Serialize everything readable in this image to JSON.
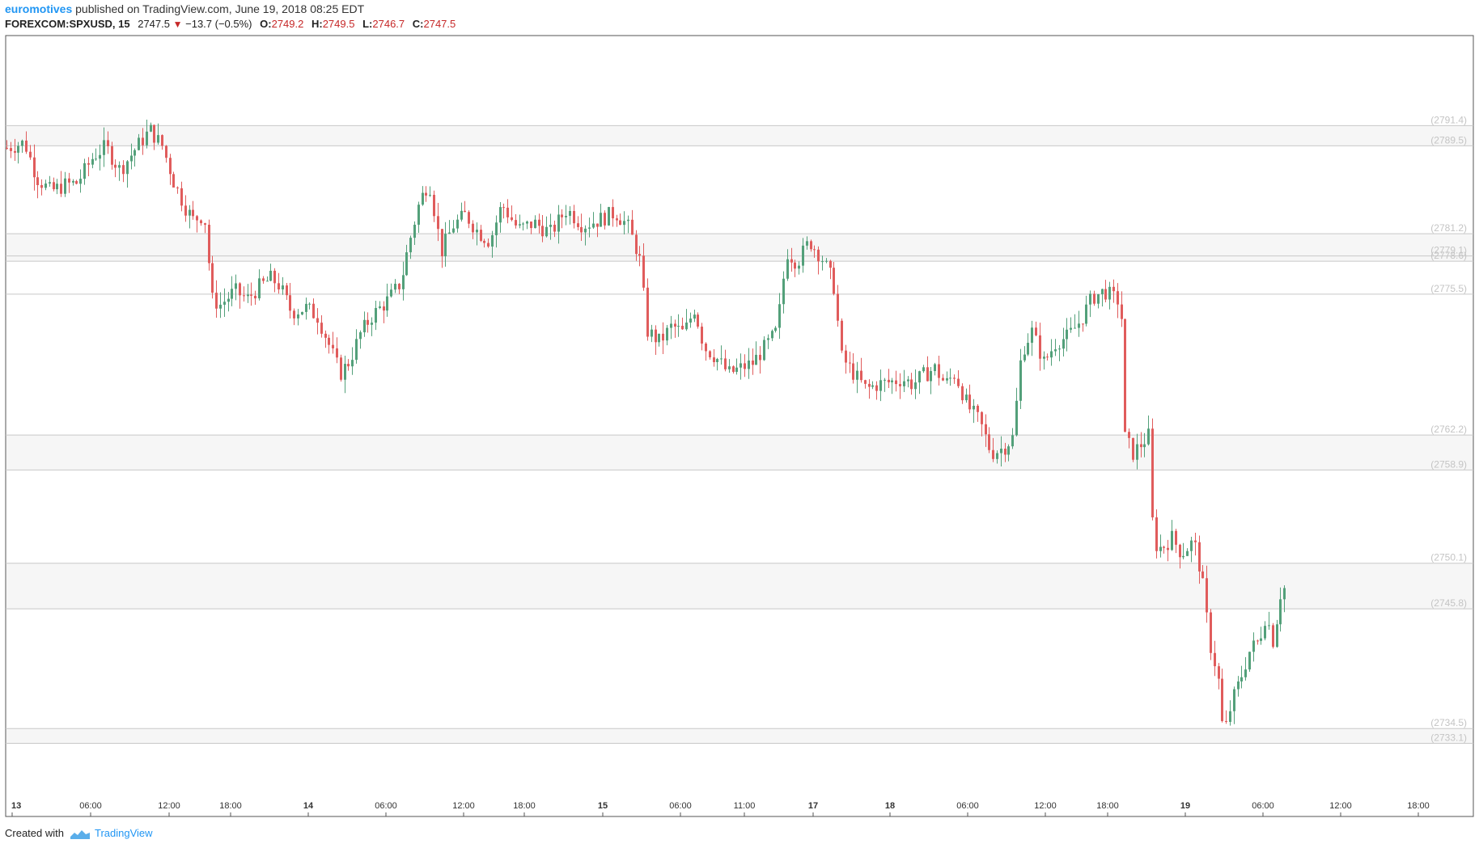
{
  "header": {
    "author": "euromotives",
    "published_text": "published on TradingView.com, June 19, 2018 08:25 EDT",
    "symbol": "FOREXCOM:SPXUSD, 15",
    "last": "2747.5",
    "change": "−13.7 (−0.5%)",
    "open_label": "O:",
    "open": "2749.2",
    "high_label": "H:",
    "high": "2749.5",
    "low_label": "L:",
    "low": "2746.7",
    "close_label": "C:",
    "close": "2747.5"
  },
  "footer": {
    "created_with": "Created with",
    "brand": "TradingView"
  },
  "colors": {
    "up": "#53a07a",
    "down": "#e05c5c",
    "level_line": "#c8c8c8",
    "level_band": "#f6f6f6",
    "level_label": "#c4c4c4",
    "axis_text": "#333333"
  },
  "chart_data": {
    "type": "candlestick",
    "ylim": [
      2726.2,
      2799.9
    ],
    "xlim": [
      0,
      1820
    ],
    "x_ticks": [
      {
        "x": 8,
        "label": "13"
      },
      {
        "x": 105,
        "label": "06:00"
      },
      {
        "x": 202,
        "label": "12:00"
      },
      {
        "x": 278,
        "label": "18:00"
      },
      {
        "x": 374,
        "label": "14"
      },
      {
        "x": 470,
        "label": "06:00"
      },
      {
        "x": 566,
        "label": "12:00"
      },
      {
        "x": 641,
        "label": "18:00"
      },
      {
        "x": 738,
        "label": "15"
      },
      {
        "x": 834,
        "label": "06:00"
      },
      {
        "x": 913,
        "label": "11:00"
      },
      {
        "x": 998,
        "label": "17"
      },
      {
        "x": 1093,
        "label": "18"
      },
      {
        "x": 1189,
        "label": "06:00"
      },
      {
        "x": 1285,
        "label": "12:00"
      },
      {
        "x": 1362,
        "label": "18:00"
      },
      {
        "x": 1458,
        "label": "19"
      },
      {
        "x": 1554,
        "label": "06:00"
      },
      {
        "x": 1650,
        "label": "12:00"
      },
      {
        "x": 1746,
        "label": "18:00"
      }
    ],
    "levels": [
      {
        "value": 2791.4,
        "label": "(2791.4)"
      },
      {
        "value": 2789.5,
        "label": "(2789.5)"
      },
      {
        "value": 2781.2,
        "label": "(2781.2)"
      },
      {
        "value": 2779.1,
        "label": "(2779.1)"
      },
      {
        "value": 2778.6,
        "label": "(2778.6)"
      },
      {
        "value": 2775.5,
        "label": "(2775.5)"
      },
      {
        "value": 2762.2,
        "label": "(2762.2)"
      },
      {
        "value": 2758.9,
        "label": "(2758.9)"
      },
      {
        "value": 2750.1,
        "label": "(2750.1)"
      },
      {
        "value": 2745.8,
        "label": "(2745.8)"
      },
      {
        "value": 2734.5,
        "label": "(2734.5)"
      },
      {
        "value": 2733.1,
        "label": "(2733.1)"
      }
    ],
    "bands": [
      [
        2789.5,
        2791.4
      ],
      [
        2778.6,
        2781.2
      ],
      [
        2758.9,
        2762.2
      ],
      [
        2745.8,
        2750.1
      ],
      [
        2733.1,
        2734.5
      ]
    ],
    "price_path": [
      [
        8,
        2789.3
      ],
      [
        30,
        2789.8
      ],
      [
        45,
        2786.5
      ],
      [
        62,
        2785.2
      ],
      [
        80,
        2785.8
      ],
      [
        95,
        2786.0
      ],
      [
        115,
        2788.5
      ],
      [
        130,
        2789.4
      ],
      [
        148,
        2787.2
      ],
      [
        165,
        2789.0
      ],
      [
        185,
        2791.0
      ],
      [
        200,
        2789.5
      ],
      [
        215,
        2786.0
      ],
      [
        228,
        2783.8
      ],
      [
        238,
        2782.5
      ],
      [
        252,
        2783.0
      ],
      [
        262,
        2775.0
      ],
      [
        272,
        2774.5
      ],
      [
        290,
        2775.8
      ],
      [
        305,
        2775.0
      ],
      [
        320,
        2776.2
      ],
      [
        335,
        2777.0
      ],
      [
        345,
        2776.3
      ],
      [
        360,
        2773.8
      ],
      [
        378,
        2774.2
      ],
      [
        392,
        2773.4
      ],
      [
        405,
        2771.0
      ],
      [
        420,
        2768.0
      ],
      [
        432,
        2769.2
      ],
      [
        445,
        2771.8
      ],
      [
        460,
        2773.5
      ],
      [
        480,
        2775.0
      ],
      [
        495,
        2776.6
      ],
      [
        505,
        2780.2
      ],
      [
        518,
        2784.2
      ],
      [
        530,
        2786.2
      ],
      [
        545,
        2779.5
      ],
      [
        560,
        2782.0
      ],
      [
        575,
        2783.0
      ],
      [
        590,
        2781.4
      ],
      [
        605,
        2780.5
      ],
      [
        620,
        2784.0
      ],
      [
        640,
        2781.6
      ],
      [
        660,
        2782.2
      ],
      [
        680,
        2781.3
      ],
      [
        700,
        2783.5
      ],
      [
        720,
        2782.0
      ],
      [
        740,
        2782.5
      ],
      [
        760,
        2783.2
      ],
      [
        775,
        2782.0
      ],
      [
        790,
        2779.0
      ],
      [
        800,
        2772.0
      ],
      [
        815,
        2771.0
      ],
      [
        830,
        2772.5
      ],
      [
        845,
        2771.8
      ],
      [
        858,
        2774.2
      ],
      [
        870,
        2770.5
      ],
      [
        885,
        2769.5
      ],
      [
        900,
        2768.0
      ],
      [
        915,
        2768.5
      ],
      [
        930,
        2769.0
      ],
      [
        945,
        2770.5
      ],
      [
        960,
        2772.0
      ],
      [
        972,
        2779.5
      ],
      [
        985,
        2778.5
      ],
      [
        1000,
        2780.5
      ],
      [
        1015,
        2779.0
      ],
      [
        1030,
        2776.5
      ],
      [
        1040,
        2769.5
      ],
      [
        1055,
        2768.0
      ],
      [
        1070,
        2766.5
      ],
      [
        1085,
        2767.0
      ],
      [
        1100,
        2767.2
      ],
      [
        1115,
        2767.5
      ],
      [
        1128,
        2767.0
      ],
      [
        1140,
        2767.8
      ],
      [
        1155,
        2768.5
      ],
      [
        1168,
        2767.0
      ],
      [
        1180,
        2768.0
      ],
      [
        1195,
        2765.0
      ],
      [
        1210,
        2763.5
      ],
      [
        1225,
        2760.5
      ],
      [
        1240,
        2761.0
      ],
      [
        1252,
        2762.0
      ],
      [
        1262,
        2770.0
      ],
      [
        1275,
        2772.0
      ],
      [
        1290,
        2769.0
      ],
      [
        1305,
        2771.0
      ],
      [
        1320,
        2771.5
      ],
      [
        1335,
        2773.0
      ],
      [
        1350,
        2775.2
      ],
      [
        1365,
        2775.8
      ],
      [
        1378,
        2775.0
      ],
      [
        1385,
        2774.8
      ],
      [
        1390,
        2762.0
      ],
      [
        1400,
        2760.5
      ],
      [
        1412,
        2761.5
      ],
      [
        1420,
        2762.2
      ],
      [
        1425,
        2752.0
      ],
      [
        1435,
        2751.5
      ],
      [
        1448,
        2752.5
      ],
      [
        1460,
        2751.0
      ],
      [
        1475,
        2752.2
      ],
      [
        1485,
        2748.8
      ],
      [
        1495,
        2742.5
      ],
      [
        1505,
        2739.5
      ],
      [
        1512,
        2733.6
      ],
      [
        1522,
        2737.0
      ],
      [
        1532,
        2739.0
      ],
      [
        1545,
        2742.0
      ],
      [
        1556,
        2742.8
      ],
      [
        1565,
        2745.5
      ],
      [
        1572,
        2742.5
      ],
      [
        1578,
        2745.0
      ],
      [
        1584,
        2748.0
      ],
      [
        1590,
        2747.5
      ]
    ]
  }
}
